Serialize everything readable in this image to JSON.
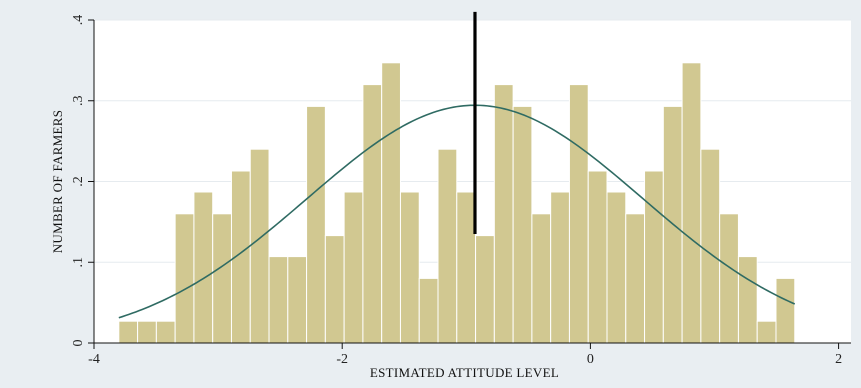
{
  "chart_data": {
    "type": "bar",
    "subtype": "histogram",
    "xlabel": "ESTIMATED ATTITUDE LEVEL",
    "ylabel": "NUMBER OF FARMERS",
    "xlim": [
      -4.0,
      2.1
    ],
    "ylim": [
      0,
      0.4
    ],
    "xticks": [
      -4,
      -2,
      0,
      2
    ],
    "xtick_labels": [
      "-4",
      "-2",
      "0",
      "2"
    ],
    "yticks": [
      0,
      0.1,
      0.2,
      0.3,
      0.4
    ],
    "ytick_labels": [
      "0",
      ".1",
      ".2",
      ".3",
      ".4"
    ],
    "grid": true,
    "bin_start": -3.8,
    "bin_width": 0.1513,
    "values": [
      0.027,
      0.027,
      0.027,
      0.16,
      0.187,
      0.16,
      0.213,
      0.24,
      0.107,
      0.107,
      0.293,
      0.133,
      0.187,
      0.32,
      0.347,
      0.187,
      0.08,
      0.24,
      0.187,
      0.133,
      0.32,
      0.293,
      0.16,
      0.187,
      0.32,
      0.213,
      0.187,
      0.16,
      0.213,
      0.293,
      0.347,
      0.24,
      0.16,
      0.107,
      0.027,
      0.08
    ],
    "normal_curve": {
      "mean": -0.93,
      "sd": 1.355
    },
    "reference_line": {
      "x": -0.93,
      "y_bottom": 0.135,
      "y_top": 0.41
    },
    "colors": {
      "background": "#e9eef2",
      "plot_background": "#ffffff",
      "bar_fill": "#d1c891",
      "bar_edge": "#ffffff",
      "curve": "#2f6b63",
      "reference_line": "#000000",
      "grid": "#e6ebef"
    }
  }
}
